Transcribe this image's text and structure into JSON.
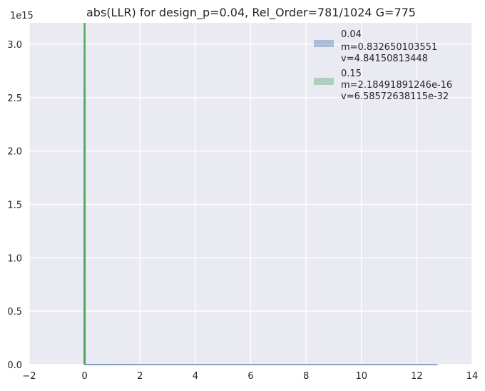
{
  "chart_data": {
    "type": "area",
    "title": "abs(LLR) for design_p=0.04, Rel_Order=781/1024 G=775",
    "xlabel": "",
    "ylabel": "",
    "xlim": [
      -2,
      14
    ],
    "ylim": [
      0,
      3.2
    ],
    "y_scale_label": "1e15",
    "x_ticks": [
      -2,
      0,
      2,
      4,
      6,
      8,
      10,
      12,
      14
    ],
    "x_tick_labels": [
      "−2",
      "0",
      "2",
      "4",
      "6",
      "8",
      "10",
      "12",
      "14"
    ],
    "y_ticks": [
      0.0,
      0.5,
      1.0,
      1.5,
      2.0,
      2.5,
      3.0
    ],
    "y_tick_labels": [
      "0.0",
      "0.5",
      "1.0",
      "1.5",
      "2.0",
      "2.5",
      "3.0"
    ],
    "grid": true,
    "legend_position": "top-right",
    "series": [
      {
        "name": "0.04",
        "legend_lines": [
          "0.04",
          " m=0.832650103551",
          " v=4.84150813448"
        ],
        "color": "#4c72b0",
        "x": [
          0.0,
          0.01,
          2,
          4,
          6,
          8,
          10,
          12,
          12.75
        ],
        "y": [
          0.0,
          0.0003,
          0.0002,
          0.0001,
          0.0001,
          0.0001,
          0.0001,
          0.0001,
          0.0
        ]
      },
      {
        "name": "0.15",
        "legend_lines": [
          "0.15",
          " m=2.18491891246e-16",
          " v=6.58572638115e-32"
        ],
        "color": "#55a868",
        "x": [
          -0.01,
          -0.005,
          0.0,
          0.005,
          0.01
        ],
        "y": [
          0.0,
          2.4,
          3.2,
          2.4,
          0.0
        ]
      }
    ]
  }
}
